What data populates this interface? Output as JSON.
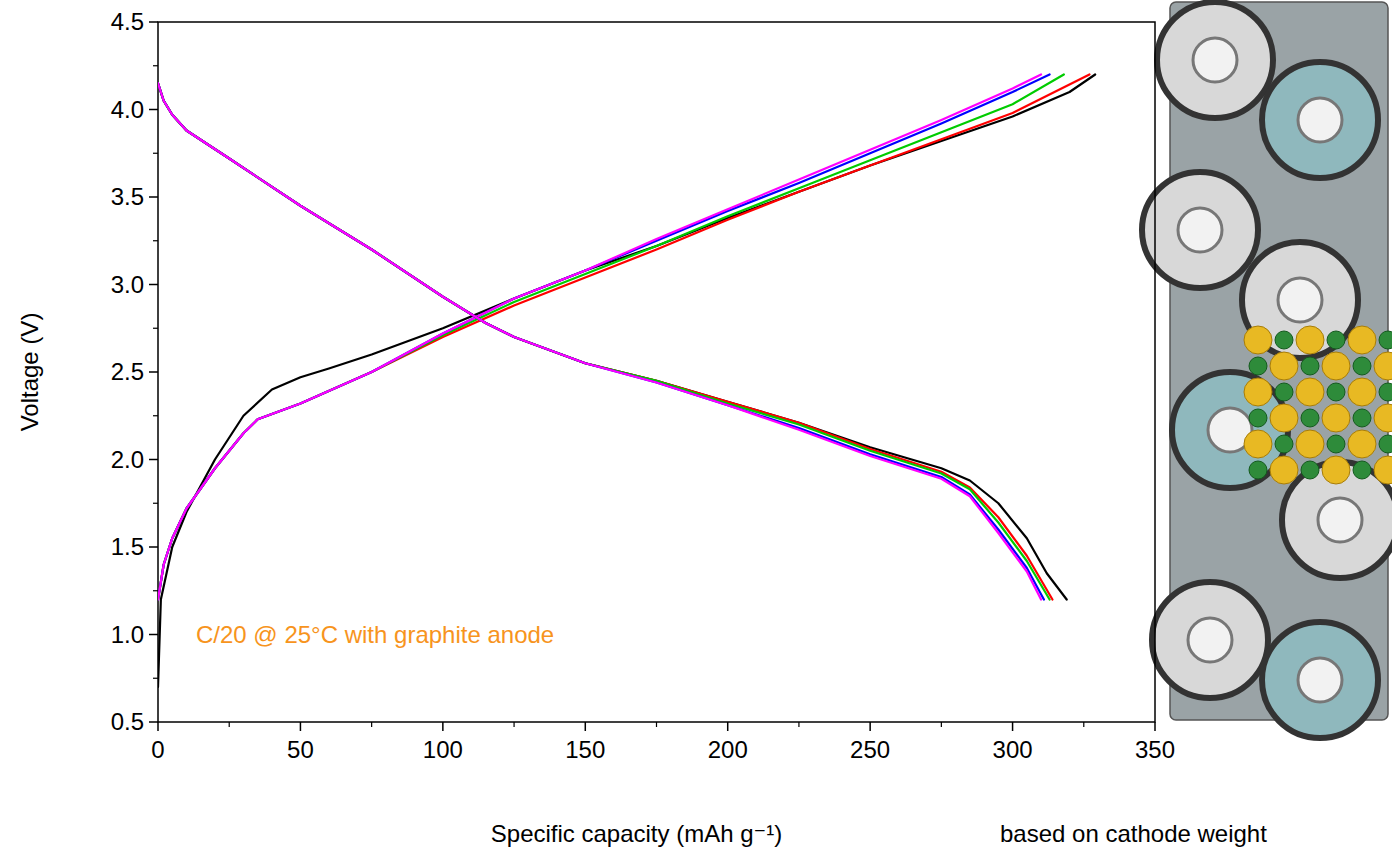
{
  "chart_data": {
    "type": "line",
    "x_label": "Specific capacity (mAh g⁻¹)",
    "y_label": "Voltage (V)",
    "annotations": [
      "C/20 @ 25°C with graphite anode",
      "based on cathode weight"
    ],
    "xlim": [
      0,
      350
    ],
    "xticks": [
      0,
      50,
      100,
      150,
      200,
      250,
      300,
      350
    ],
    "ylim": [
      0.5,
      4.5
    ],
    "yticks": [
      0.5,
      {
        "value": 1,
        "label": "1.0"
      },
      1.5,
      {
        "value": 2,
        "label": "2.0"
      },
      2.5,
      {
        "value": 3,
        "label": "3.0"
      },
      3.5,
      {
        "value": 4,
        "label": "4.0"
      },
      4.5
    ],
    "grid": false,
    "marker": "none",
    "line_style": "solid",
    "series": [
      {
        "color": "#000000",
        "x": [
          0,
          1,
          5,
          10,
          20,
          30,
          40,
          50,
          60,
          75,
          100,
          125,
          150,
          175,
          200,
          225,
          250,
          275,
          300,
          320,
          329
        ],
        "values": [
          0.7,
          1.2,
          1.5,
          1.7,
          2.0,
          2.25,
          2.4,
          2.47,
          2.52,
          2.6,
          2.75,
          2.92,
          3.08,
          3.22,
          3.38,
          3.53,
          3.68,
          3.82,
          3.96,
          4.1,
          4.2
        ]
      },
      {
        "color": "#ff0000",
        "x": [
          0,
          2,
          5,
          10,
          20,
          30,
          35,
          50,
          75,
          100,
          125,
          150,
          175,
          200,
          225,
          250,
          275,
          300,
          327
        ],
        "values": [
          1.2,
          1.4,
          1.55,
          1.72,
          1.95,
          2.15,
          2.23,
          2.32,
          2.5,
          2.7,
          2.88,
          3.04,
          3.2,
          3.37,
          3.53,
          3.68,
          3.83,
          3.98,
          4.2
        ]
      },
      {
        "color": "#00cc00",
        "x": [
          0,
          2,
          5,
          10,
          20,
          30,
          35,
          50,
          75,
          100,
          125,
          150,
          175,
          200,
          225,
          250,
          275,
          300,
          318
        ],
        "values": [
          1.2,
          1.4,
          1.55,
          1.72,
          1.95,
          2.15,
          2.23,
          2.32,
          2.5,
          2.71,
          2.9,
          3.06,
          3.22,
          3.39,
          3.55,
          3.71,
          3.87,
          4.03,
          4.2
        ]
      },
      {
        "color": "#0000ff",
        "x": [
          0,
          2,
          5,
          10,
          20,
          30,
          35,
          50,
          75,
          100,
          125,
          150,
          175,
          200,
          225,
          250,
          275,
          300,
          313
        ],
        "values": [
          1.2,
          1.4,
          1.55,
          1.72,
          1.95,
          2.15,
          2.23,
          2.32,
          2.5,
          2.72,
          2.92,
          3.08,
          3.25,
          3.42,
          3.58,
          3.75,
          3.92,
          4.1,
          4.2
        ]
      },
      {
        "color": "#ff00ff",
        "x": [
          0,
          2,
          5,
          10,
          20,
          30,
          35,
          50,
          75,
          100,
          125,
          150,
          175,
          200,
          225,
          250,
          275,
          300,
          310
        ],
        "values": [
          1.2,
          1.4,
          1.55,
          1.72,
          1.95,
          2.15,
          2.23,
          2.32,
          2.5,
          2.72,
          2.92,
          3.08,
          3.26,
          3.43,
          3.6,
          3.77,
          3.94,
          4.12,
          4.2
        ]
      },
      {
        "color": "#000000",
        "x": [
          0,
          2,
          5,
          10,
          25,
          50,
          75,
          100,
          115,
          125,
          150,
          175,
          200,
          225,
          250,
          275,
          285,
          295,
          305,
          312,
          319
        ],
        "values": [
          4.15,
          4.05,
          3.97,
          3.88,
          3.72,
          3.45,
          3.2,
          2.93,
          2.78,
          2.7,
          2.55,
          2.45,
          2.33,
          2.21,
          2.07,
          1.95,
          1.88,
          1.75,
          1.55,
          1.35,
          1.2
        ]
      },
      {
        "color": "#ff0000",
        "x": [
          0,
          2,
          5,
          10,
          25,
          50,
          75,
          100,
          115,
          125,
          150,
          175,
          200,
          225,
          250,
          275,
          285,
          295,
          305,
          314
        ],
        "values": [
          4.15,
          4.05,
          3.97,
          3.88,
          3.72,
          3.45,
          3.2,
          2.93,
          2.78,
          2.7,
          2.55,
          2.45,
          2.33,
          2.21,
          2.06,
          1.93,
          1.84,
          1.67,
          1.45,
          1.2
        ]
      },
      {
        "color": "#00cc00",
        "x": [
          0,
          2,
          5,
          10,
          25,
          50,
          75,
          100,
          115,
          125,
          150,
          175,
          200,
          225,
          250,
          275,
          285,
          295,
          305,
          313
        ],
        "values": [
          4.15,
          4.05,
          3.97,
          3.88,
          3.72,
          3.45,
          3.2,
          2.93,
          2.78,
          2.7,
          2.55,
          2.45,
          2.32,
          2.2,
          2.05,
          1.92,
          1.83,
          1.64,
          1.42,
          1.2
        ]
      },
      {
        "color": "#0000ff",
        "x": [
          0,
          2,
          5,
          10,
          25,
          50,
          75,
          100,
          115,
          125,
          150,
          175,
          200,
          225,
          250,
          275,
          285,
          295,
          305,
          311
        ],
        "values": [
          4.15,
          4.05,
          3.97,
          3.88,
          3.72,
          3.45,
          3.2,
          2.93,
          2.78,
          2.7,
          2.55,
          2.44,
          2.31,
          2.18,
          2.03,
          1.9,
          1.8,
          1.6,
          1.38,
          1.2
        ]
      },
      {
        "color": "#ff00ff",
        "x": [
          0,
          2,
          5,
          10,
          25,
          50,
          75,
          100,
          115,
          125,
          150,
          175,
          200,
          225,
          250,
          275,
          285,
          295,
          305,
          310
        ],
        "values": [
          4.15,
          4.05,
          3.97,
          3.88,
          3.72,
          3.45,
          3.2,
          2.93,
          2.78,
          2.7,
          2.55,
          2.44,
          2.31,
          2.17,
          2.02,
          1.89,
          1.79,
          1.58,
          1.36,
          1.2
        ]
      }
    ]
  }
}
